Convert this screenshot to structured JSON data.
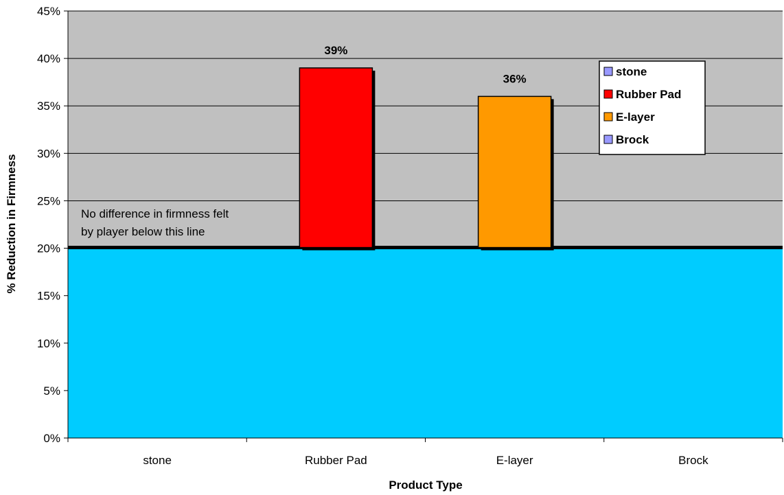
{
  "chart_data": {
    "type": "bar",
    "categories": [
      "stone",
      "Rubber Pad",
      "E-layer",
      "Brock"
    ],
    "values": [
      null,
      39,
      36,
      null
    ],
    "value_labels": [
      "",
      "39%",
      "36%",
      ""
    ],
    "colors": {
      "stone": "#9999FF",
      "Rubber Pad": "#FF0000",
      "E-layer": "#FF9900",
      "Brock": "#9999FF",
      "plot_background": "#C0C0C0",
      "threshold_fill": "#00CCFF",
      "threshold_line": "#000000"
    },
    "xlabel": "Product Type",
    "ylabel": "% Reduction in Firmness",
    "ylim": [
      0,
      45
    ],
    "yticks": [
      0,
      5,
      10,
      15,
      20,
      25,
      30,
      35,
      40,
      45
    ],
    "ytick_labels": [
      "0%",
      "5%",
      "10%",
      "15%",
      "20%",
      "25%",
      "30%",
      "35%",
      "40%",
      "45%"
    ],
    "grid": true,
    "threshold": {
      "value": 20,
      "annotation_line1": "No difference in firmness felt",
      "annotation_line2": "by player below this line"
    },
    "legend": {
      "placement": "top-right",
      "entries": [
        "stone",
        "Rubber Pad",
        "E-layer",
        "Brock"
      ]
    }
  }
}
